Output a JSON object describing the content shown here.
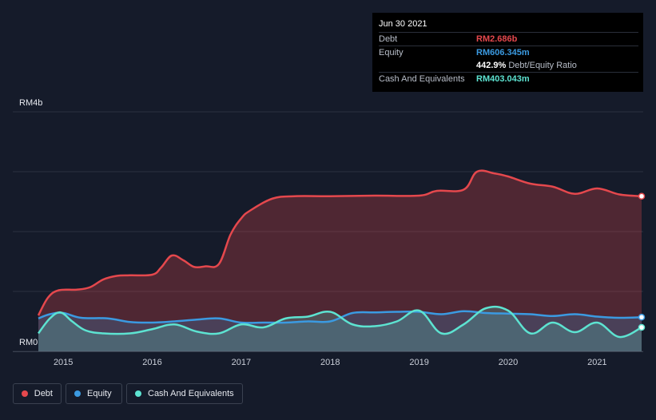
{
  "tooltip": {
    "date": "Jun 30 2021",
    "rows": [
      {
        "label": "Debt",
        "value": "RM2.686b",
        "color": "#e5484d"
      },
      {
        "label": "Equity",
        "value": "RM606.345m",
        "color": "#3b9ae1"
      },
      {
        "label": "",
        "value": "442.9%",
        "suffix": "Debt/Equity Ratio",
        "color": "#ffffff"
      },
      {
        "label": "Cash And Equivalents",
        "value": "RM403.043m",
        "color": "#5de3d1"
      }
    ]
  },
  "legend": [
    {
      "label": "Debt",
      "color": "#e5484d"
    },
    {
      "label": "Equity",
      "color": "#3b9ae1"
    },
    {
      "label": "Cash And Equivalents",
      "color": "#5de3d1"
    }
  ],
  "chart_data": {
    "type": "area",
    "ylim": [
      0,
      4
    ],
    "y_tick_labels": [
      "RM0",
      "RM4b"
    ],
    "x_tick_labels": [
      "2015",
      "2016",
      "2017",
      "2018",
      "2019",
      "2020",
      "2021"
    ],
    "xlim": [
      2014.72,
      2021.5
    ],
    "grid": true,
    "series": [
      {
        "name": "Debt",
        "color": "#e5484d",
        "points": [
          [
            2014.72,
            0.6
          ],
          [
            2014.83,
            0.9
          ],
          [
            2014.95,
            1.02
          ],
          [
            2015.15,
            1.03
          ],
          [
            2015.3,
            1.07
          ],
          [
            2015.45,
            1.2
          ],
          [
            2015.6,
            1.26
          ],
          [
            2015.75,
            1.27
          ],
          [
            2016.0,
            1.28
          ],
          [
            2016.1,
            1.4
          ],
          [
            2016.22,
            1.6
          ],
          [
            2016.35,
            1.52
          ],
          [
            2016.47,
            1.41
          ],
          [
            2016.6,
            1.42
          ],
          [
            2016.75,
            1.46
          ],
          [
            2016.88,
            1.95
          ],
          [
            2017.0,
            2.22
          ],
          [
            2017.1,
            2.35
          ],
          [
            2017.35,
            2.55
          ],
          [
            2017.6,
            2.59
          ],
          [
            2018.0,
            2.59
          ],
          [
            2018.5,
            2.6
          ],
          [
            2019.0,
            2.6
          ],
          [
            2019.2,
            2.68
          ],
          [
            2019.5,
            2.7
          ],
          [
            2019.65,
            3.0
          ],
          [
            2019.85,
            2.97
          ],
          [
            2020.0,
            2.92
          ],
          [
            2020.25,
            2.8
          ],
          [
            2020.5,
            2.75
          ],
          [
            2020.75,
            2.63
          ],
          [
            2021.0,
            2.72
          ],
          [
            2021.25,
            2.62
          ],
          [
            2021.5,
            2.59
          ]
        ]
      },
      {
        "name": "Equity",
        "color": "#3b9ae1",
        "points": [
          [
            2014.72,
            0.55
          ],
          [
            2014.85,
            0.62
          ],
          [
            2015.0,
            0.64
          ],
          [
            2015.2,
            0.56
          ],
          [
            2015.5,
            0.55
          ],
          [
            2015.75,
            0.49
          ],
          [
            2016.0,
            0.48
          ],
          [
            2016.25,
            0.5
          ],
          [
            2016.5,
            0.53
          ],
          [
            2016.75,
            0.55
          ],
          [
            2017.0,
            0.48
          ],
          [
            2017.25,
            0.48
          ],
          [
            2017.5,
            0.48
          ],
          [
            2017.75,
            0.5
          ],
          [
            2018.0,
            0.5
          ],
          [
            2018.25,
            0.64
          ],
          [
            2018.5,
            0.65
          ],
          [
            2018.75,
            0.66
          ],
          [
            2019.0,
            0.66
          ],
          [
            2019.25,
            0.62
          ],
          [
            2019.5,
            0.67
          ],
          [
            2019.75,
            0.64
          ],
          [
            2020.0,
            0.63
          ],
          [
            2020.25,
            0.62
          ],
          [
            2020.5,
            0.59
          ],
          [
            2020.75,
            0.62
          ],
          [
            2021.0,
            0.58
          ],
          [
            2021.25,
            0.56
          ],
          [
            2021.5,
            0.57
          ]
        ]
      },
      {
        "name": "Cash And Equivalents",
        "color": "#5de3d1",
        "points": [
          [
            2014.72,
            0.3
          ],
          [
            2014.85,
            0.55
          ],
          [
            2014.97,
            0.65
          ],
          [
            2015.1,
            0.5
          ],
          [
            2015.25,
            0.35
          ],
          [
            2015.45,
            0.3
          ],
          [
            2015.75,
            0.3
          ],
          [
            2016.0,
            0.37
          ],
          [
            2016.25,
            0.45
          ],
          [
            2016.5,
            0.33
          ],
          [
            2016.75,
            0.3
          ],
          [
            2017.0,
            0.45
          ],
          [
            2017.25,
            0.4
          ],
          [
            2017.5,
            0.55
          ],
          [
            2017.75,
            0.58
          ],
          [
            2018.0,
            0.66
          ],
          [
            2018.25,
            0.45
          ],
          [
            2018.5,
            0.42
          ],
          [
            2018.75,
            0.5
          ],
          [
            2019.0,
            0.68
          ],
          [
            2019.25,
            0.3
          ],
          [
            2019.5,
            0.45
          ],
          [
            2019.75,
            0.72
          ],
          [
            2020.0,
            0.68
          ],
          [
            2020.25,
            0.3
          ],
          [
            2020.5,
            0.48
          ],
          [
            2020.75,
            0.32
          ],
          [
            2021.0,
            0.48
          ],
          [
            2021.25,
            0.24
          ],
          [
            2021.5,
            0.4
          ]
        ]
      }
    ]
  }
}
